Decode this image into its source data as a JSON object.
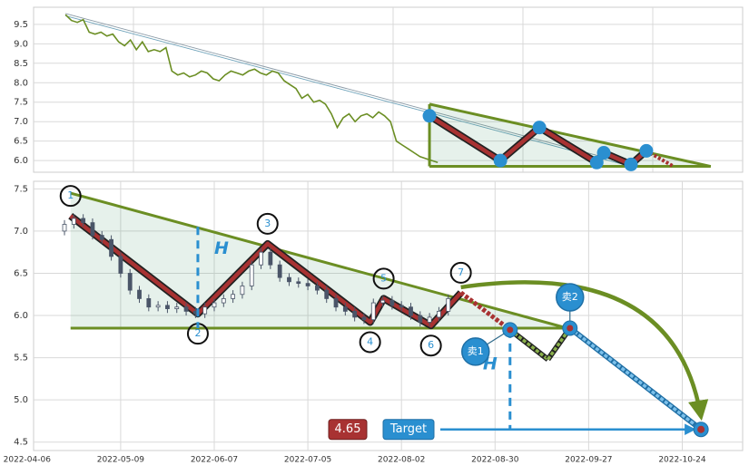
{
  "chart_data": [
    {
      "type": "line",
      "color": "#6b8e23",
      "grid": true,
      "values": [
        9.75,
        9.6,
        9.55,
        9.62,
        9.3,
        9.25,
        9.3,
        9.2,
        9.25,
        9.05,
        8.95,
        9.1,
        8.85,
        9.05,
        8.8,
        8.85,
        8.8,
        8.9,
        8.3,
        8.2,
        8.25,
        8.15,
        8.2,
        8.3,
        8.25,
        8.1,
        8.05,
        8.2,
        8.3,
        8.25,
        8.2,
        8.3,
        8.35,
        8.25,
        8.2,
        8.3,
        8.25,
        8.05,
        7.95,
        7.85,
        7.6,
        7.7,
        7.5,
        7.55,
        7.45,
        7.2,
        6.85,
        7.1,
        7.2,
        7.0,
        7.15,
        7.2,
        7.1,
        7.25,
        7.15,
        7.0,
        6.5,
        6.4,
        6.3,
        6.2,
        6.1,
        6.05,
        6.0,
        5.95
      ],
      "xlim": [
        -5.4,
        114.6
      ],
      "ylim": [
        5.7,
        9.94
      ],
      "yticks": [
        {
          "value": 6,
          "label": "6.0"
        },
        6.5,
        {
          "value": 7,
          "label": "7.0"
        },
        7.5,
        {
          "value": 8,
          "label": "8.0"
        },
        8.5,
        {
          "value": 9,
          "label": "9.0"
        },
        9.5
      ],
      "trendlines": [
        {
          "x": [
            0,
            95.7
          ],
          "y": [
            9.78,
            5.9
          ]
        },
        {
          "x": [
            0,
            95.7
          ],
          "y": [
            9.72,
            5.85
          ]
        }
      ],
      "triangle": {
        "x": [
          61.6,
          109.2
        ],
        "top": [
          7.45,
          5.85
        ],
        "base": 5.85
      },
      "zigzag": {
        "x": [
          61.6,
          73.6,
          80.2,
          89.9,
          91.1,
          95.7,
          98.3,
          102.9
        ],
        "y": [
          7.15,
          6.0,
          6.85,
          5.95,
          6.2,
          5.9,
          6.25,
          5.85
        ]
      }
    },
    {
      "type": "candlestick",
      "grid": true,
      "color": "#4a5568",
      "x": [
        8,
        10,
        12,
        14,
        16,
        18,
        20,
        22,
        24,
        26,
        28,
        30,
        32,
        34,
        36,
        38,
        40,
        42,
        44,
        46,
        48,
        50,
        52,
        54,
        56,
        58,
        60,
        62,
        64,
        66,
        68,
        70,
        72,
        74,
        76,
        78,
        80,
        82,
        84,
        86,
        88,
        90
      ],
      "open": [
        7.0,
        7.08,
        7.15,
        7.1,
        6.95,
        6.9,
        6.7,
        6.5,
        6.3,
        6.2,
        6.1,
        6.12,
        6.08,
        6.1,
        6.05,
        6.02,
        6.1,
        6.15,
        6.2,
        6.25,
        6.35,
        6.6,
        6.75,
        6.6,
        6.45,
        6.4,
        6.38,
        6.35,
        6.3,
        6.2,
        6.1,
        6.05,
        5.98,
        5.95,
        6.15,
        6.18,
        6.12,
        6.1,
        6.0,
        5.92,
        5.98,
        6.05
      ],
      "high": [
        7.13,
        7.2,
        7.2,
        7.15,
        7.0,
        6.95,
        6.75,
        6.55,
        6.35,
        6.25,
        6.17,
        6.17,
        6.15,
        6.15,
        6.1,
        6.15,
        6.2,
        6.25,
        6.3,
        6.4,
        6.65,
        6.8,
        6.8,
        6.65,
        6.5,
        6.45,
        6.43,
        6.4,
        6.35,
        6.25,
        6.15,
        6.1,
        6.03,
        6.2,
        6.23,
        6.23,
        6.17,
        6.15,
        6.05,
        6.03,
        6.1,
        6.25
      ],
      "low": [
        6.95,
        7.03,
        7.05,
        6.9,
        6.85,
        6.65,
        6.45,
        6.25,
        6.15,
        6.05,
        6.05,
        6.03,
        6.03,
        6.0,
        5.97,
        5.97,
        6.05,
        6.1,
        6.15,
        6.2,
        6.3,
        6.55,
        6.55,
        6.4,
        6.35,
        6.33,
        6.3,
        6.25,
        6.15,
        6.05,
        6.0,
        5.93,
        5.9,
        5.9,
        6.1,
        6.07,
        6.05,
        5.95,
        5.87,
        5.87,
        5.93,
        6.0
      ],
      "close": [
        7.08,
        7.15,
        7.1,
        6.95,
        6.9,
        6.7,
        6.5,
        6.3,
        6.2,
        6.1,
        6.12,
        6.08,
        6.1,
        6.05,
        6.02,
        6.1,
        6.15,
        6.2,
        6.25,
        6.35,
        6.6,
        6.75,
        6.6,
        6.45,
        6.4,
        6.38,
        6.35,
        6.3,
        6.2,
        6.1,
        6.05,
        5.98,
        5.95,
        6.15,
        6.18,
        6.12,
        6.1,
        6.0,
        5.92,
        5.98,
        6.05,
        6.2
      ],
      "xlim": [
        1.4,
        152.9
      ],
      "ylim": [
        4.4,
        7.59
      ],
      "xticks": [
        {
          "value": 0,
          "label": "2022-04-06"
        },
        {
          "value": 20,
          "label": "2022-05-09"
        },
        {
          "value": 40,
          "label": "2022-06-07"
        },
        {
          "value": 60,
          "label": "2022-07-05"
        },
        {
          "value": 80,
          "label": "2022-08-02"
        },
        {
          "value": 100,
          "label": "2022-08-30"
        },
        {
          "value": 120,
          "label": "2022-09-27"
        },
        {
          "value": 140,
          "label": "2022-10-24"
        }
      ],
      "yticks": [
        4.5,
        {
          "value": 5,
          "label": "5.0"
        },
        5.5,
        {
          "value": 6,
          "label": "6.0"
        },
        6.5,
        {
          "value": 7,
          "label": "7.0"
        },
        7.5
      ],
      "triangle": {
        "x": [
          9.3,
          115.4
        ],
        "top": [
          7.45,
          5.85
        ],
        "base": 5.85
      },
      "zigzag": {
        "x": [
          9.3,
          36.5,
          51.4,
          73.3,
          76.2,
          86.3,
          92.7
        ],
        "y": [
          7.18,
          6.02,
          6.85,
          5.92,
          6.2,
          5.88,
          6.27
        ],
        "labels": [
          "1",
          "2",
          "3",
          "4",
          "5",
          "6",
          "7"
        ]
      },
      "height_label": "H",
      "height_line": {
        "x": 36.5,
        "y": [
          7.05,
          5.85
        ]
      },
      "projection": {
        "x": [
          92.7,
          103.2,
          111.3,
          116.0,
          144.0
        ],
        "y": [
          6.27,
          5.83,
          5.48,
          5.85,
          4.65
        ]
      },
      "sells": [
        {
          "label": "卖1",
          "x": 103.2,
          "y": 5.83
        },
        {
          "label": "卖2",
          "x": 116.0,
          "y": 5.85
        }
      ],
      "target": {
        "label": "Target",
        "value": 4.65,
        "x": 144.0
      }
    }
  ]
}
